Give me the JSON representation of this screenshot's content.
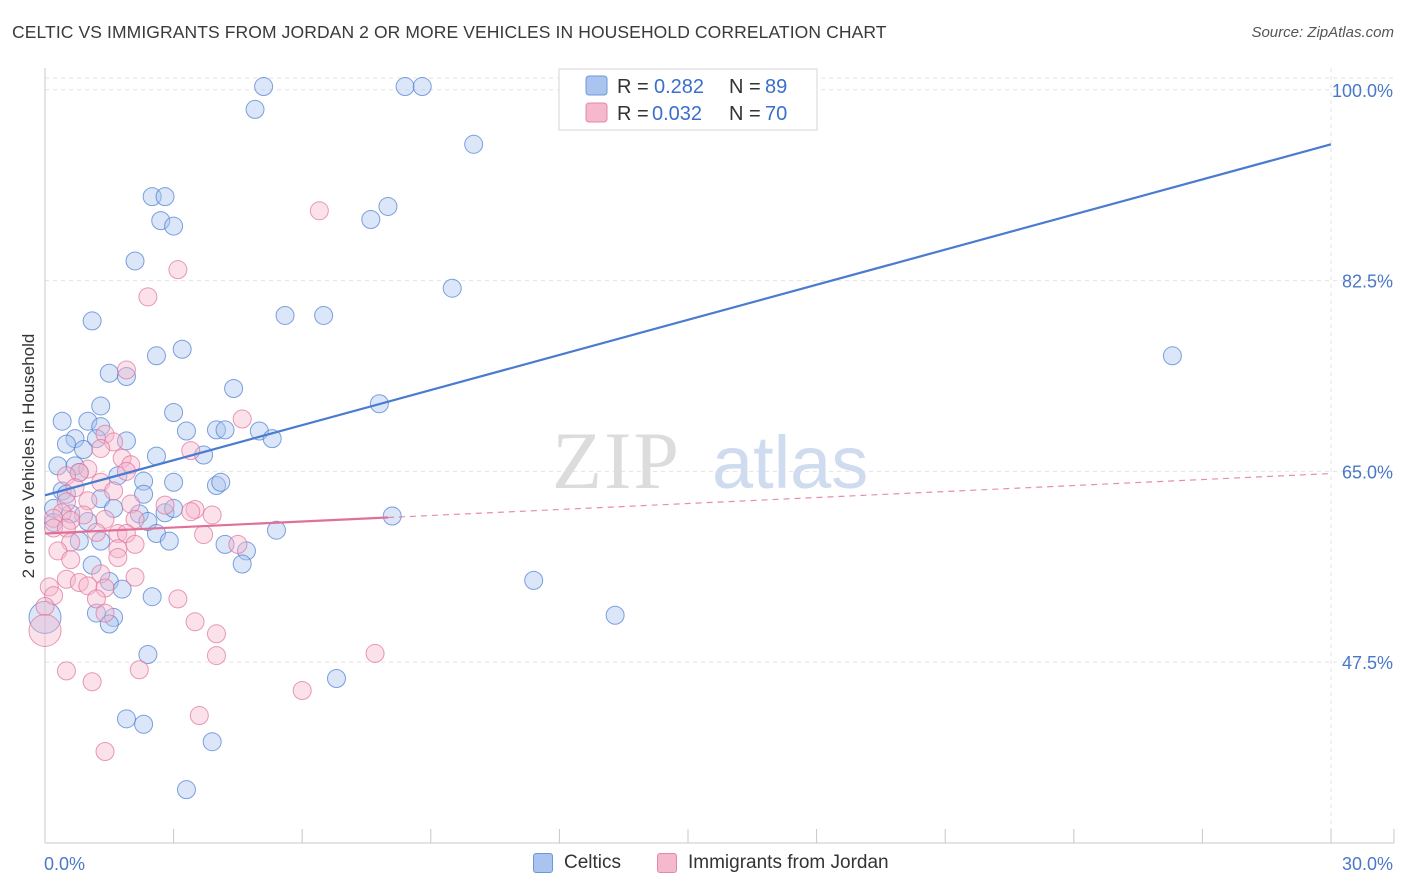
{
  "chart_data": {
    "type": "scatter",
    "title": "CELTIC VS IMMIGRANTS FROM JORDAN 2 OR MORE VEHICLES IN HOUSEHOLD CORRELATION CHART",
    "source": "Source: ZipAtlas.com",
    "xlabel": "",
    "ylabel": "2 or more Vehicles in Household",
    "xlim": [
      0,
      30
    ],
    "ylim": [
      31,
      102
    ],
    "x_tick_labels": [
      "0.0%",
      "30.0%"
    ],
    "y_ticks": [
      {
        "value": 100.0,
        "label": "100.0%"
      },
      {
        "value": 82.5,
        "label": "82.5%"
      },
      {
        "value": 65.0,
        "label": "65.0%"
      },
      {
        "value": 47.5,
        "label": "47.5%"
      }
    ],
    "grid": true,
    "watermark": {
      "bold": "ZIP",
      "light": "atlas"
    },
    "legend": {
      "r_label": "R =",
      "n_label": "N =",
      "entries": [
        {
          "name": "Celtics",
          "r": "0.282",
          "n": "89"
        },
        {
          "name": "Immigrants from Jordan",
          "r": "0.032",
          "n": "70"
        }
      ]
    },
    "series": [
      {
        "name": "Celtics",
        "color": "#4a7bd0",
        "fill": "#a9c4ee",
        "trend": {
          "x": [
            0,
            30
          ],
          "y": [
            62.8,
            95.0
          ],
          "dashed_from": null
        },
        "points": [
          [
            5.1,
            100.3
          ],
          [
            8.4,
            100.3
          ],
          [
            8.8,
            100.3
          ],
          [
            4.9,
            98.2
          ],
          [
            10.0,
            95.0
          ],
          [
            2.5,
            90.2
          ],
          [
            2.8,
            90.2
          ],
          [
            8.0,
            89.3
          ],
          [
            7.6,
            88.1
          ],
          [
            2.7,
            88.0
          ],
          [
            3.0,
            87.5
          ],
          [
            2.1,
            84.3
          ],
          [
            9.5,
            81.8
          ],
          [
            5.6,
            79.3
          ],
          [
            6.5,
            79.3
          ],
          [
            1.1,
            78.8
          ],
          [
            3.2,
            76.2
          ],
          [
            2.6,
            75.6
          ],
          [
            1.5,
            74.0
          ],
          [
            1.9,
            73.7
          ],
          [
            4.4,
            72.6
          ],
          [
            26.3,
            75.6
          ],
          [
            7.8,
            71.2
          ],
          [
            1.3,
            71.0
          ],
          [
            3.0,
            70.4
          ],
          [
            0.4,
            69.6
          ],
          [
            1.0,
            69.6
          ],
          [
            1.3,
            69.1
          ],
          [
            0.7,
            68.0
          ],
          [
            1.2,
            68.0
          ],
          [
            3.3,
            68.7
          ],
          [
            4.0,
            68.8
          ],
          [
            4.2,
            68.8
          ],
          [
            5.0,
            68.7
          ],
          [
            5.3,
            68.0
          ],
          [
            0.5,
            67.5
          ],
          [
            0.9,
            67.0
          ],
          [
            1.9,
            67.8
          ],
          [
            2.6,
            66.4
          ],
          [
            3.7,
            66.5
          ],
          [
            0.3,
            65.5
          ],
          [
            0.7,
            65.5
          ],
          [
            0.8,
            64.9
          ],
          [
            1.7,
            64.6
          ],
          [
            2.3,
            64.1
          ],
          [
            3.0,
            64.0
          ],
          [
            4.0,
            63.7
          ],
          [
            4.1,
            64.0
          ],
          [
            0.4,
            63.2
          ],
          [
            0.5,
            62.9
          ],
          [
            1.3,
            62.5
          ],
          [
            1.6,
            61.6
          ],
          [
            0.2,
            61.6
          ],
          [
            2.3,
            62.9
          ],
          [
            2.8,
            61.2
          ],
          [
            2.2,
            61.1
          ],
          [
            0.6,
            61.1
          ],
          [
            0.2,
            60.3
          ],
          [
            3.0,
            61.6
          ],
          [
            2.4,
            60.4
          ],
          [
            1.0,
            60.4
          ],
          [
            8.1,
            60.9
          ],
          [
            5.4,
            59.6
          ],
          [
            2.6,
            59.3
          ],
          [
            2.9,
            58.6
          ],
          [
            0.8,
            58.6
          ],
          [
            1.3,
            58.6
          ],
          [
            4.2,
            58.3
          ],
          [
            4.7,
            57.7
          ],
          [
            1.1,
            56.4
          ],
          [
            4.6,
            56.5
          ],
          [
            11.4,
            55.0
          ],
          [
            1.5,
            54.9
          ],
          [
            1.8,
            54.2
          ],
          [
            2.5,
            53.5
          ],
          [
            1.2,
            52.0
          ],
          [
            1.6,
            51.6
          ],
          [
            13.3,
            51.8
          ],
          [
            1.5,
            51.0
          ],
          [
            0.0,
            51.6
          ],
          [
            2.4,
            48.2
          ],
          [
            6.8,
            46.0
          ],
          [
            1.9,
            42.3
          ],
          [
            2.3,
            41.8
          ],
          [
            3.9,
            40.2
          ],
          [
            3.3,
            35.8
          ]
        ]
      },
      {
        "name": "Immigrants from Jordan",
        "color": "#e0709a",
        "fill": "#f5b8cc",
        "trend": {
          "x": [
            0,
            30
          ],
          "y": [
            59.3,
            64.8
          ],
          "dashed_from": 8.0
        },
        "points": [
          [
            6.4,
            88.9
          ],
          [
            3.1,
            83.5
          ],
          [
            2.4,
            81.0
          ],
          [
            1.9,
            74.3
          ],
          [
            4.6,
            69.8
          ],
          [
            1.4,
            68.4
          ],
          [
            1.6,
            67.7
          ],
          [
            1.3,
            67.1
          ],
          [
            1.8,
            66.2
          ],
          [
            2.0,
            65.6
          ],
          [
            3.4,
            66.9
          ],
          [
            1.0,
            65.2
          ],
          [
            1.9,
            65.0
          ],
          [
            0.8,
            64.9
          ],
          [
            0.5,
            64.6
          ],
          [
            1.3,
            64.0
          ],
          [
            1.6,
            63.2
          ],
          [
            0.7,
            63.5
          ],
          [
            1.0,
            62.3
          ],
          [
            0.5,
            62.2
          ],
          [
            2.0,
            62.0
          ],
          [
            2.8,
            61.9
          ],
          [
            3.5,
            61.5
          ],
          [
            3.4,
            61.3
          ],
          [
            3.9,
            61.0
          ],
          [
            0.4,
            61.2
          ],
          [
            0.9,
            61.0
          ],
          [
            0.2,
            60.7
          ],
          [
            0.6,
            60.5
          ],
          [
            1.4,
            60.6
          ],
          [
            2.1,
            60.6
          ],
          [
            0.2,
            59.8
          ],
          [
            0.5,
            59.8
          ],
          [
            1.2,
            59.4
          ],
          [
            1.7,
            59.3
          ],
          [
            1.9,
            59.3
          ],
          [
            3.7,
            59.2
          ],
          [
            0.6,
            58.5
          ],
          [
            2.1,
            58.3
          ],
          [
            4.5,
            58.3
          ],
          [
            1.7,
            57.9
          ],
          [
            0.3,
            57.7
          ],
          [
            1.7,
            57.1
          ],
          [
            0.6,
            56.9
          ],
          [
            1.3,
            55.6
          ],
          [
            2.1,
            55.3
          ],
          [
            0.5,
            55.1
          ],
          [
            0.8,
            54.8
          ],
          [
            1.0,
            54.5
          ],
          [
            0.1,
            54.4
          ],
          [
            1.4,
            54.3
          ],
          [
            0.2,
            53.6
          ],
          [
            1.2,
            53.3
          ],
          [
            3.1,
            53.3
          ],
          [
            0.0,
            52.6
          ],
          [
            1.4,
            52.0
          ],
          [
            3.5,
            51.2
          ],
          [
            4.0,
            50.1
          ],
          [
            0.0,
            50.4
          ],
          [
            4.0,
            48.1
          ],
          [
            7.7,
            48.3
          ],
          [
            0.5,
            46.7
          ],
          [
            2.2,
            46.8
          ],
          [
            1.1,
            45.7
          ],
          [
            6.0,
            44.9
          ],
          [
            3.6,
            42.6
          ],
          [
            1.4,
            39.3
          ]
        ]
      }
    ]
  }
}
